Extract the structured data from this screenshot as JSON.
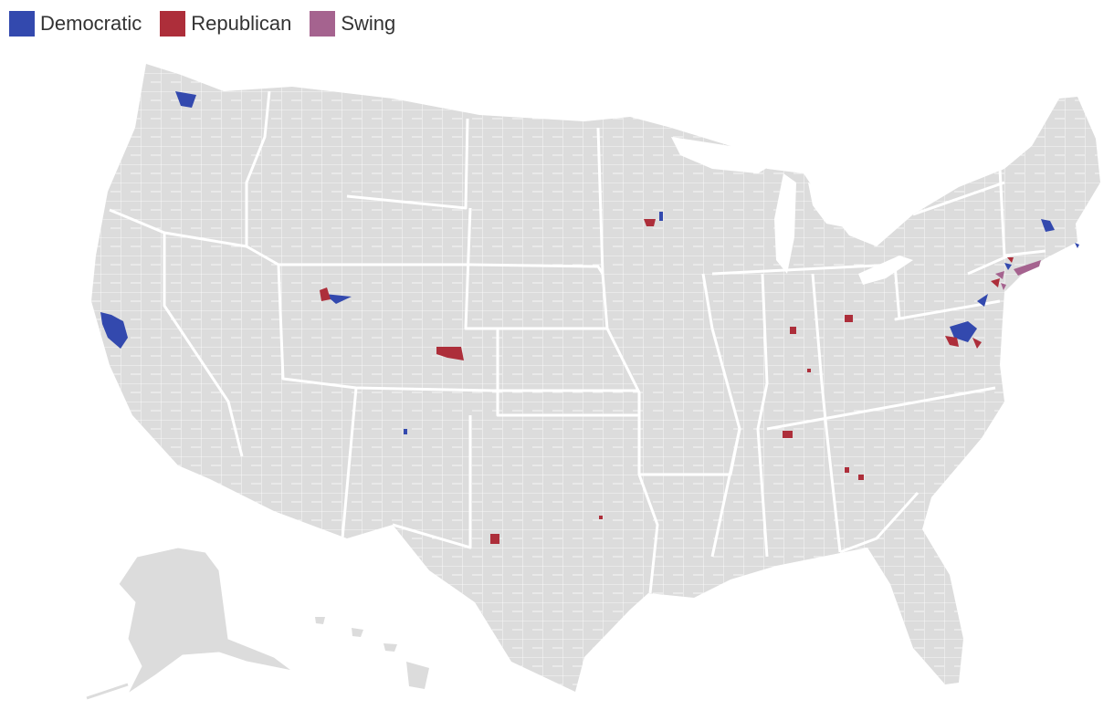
{
  "legend": {
    "items": [
      {
        "label": "Democratic",
        "color": "#3349ae"
      },
      {
        "label": "Republican",
        "color": "#ad2e3a"
      },
      {
        "label": "Swing",
        "color": "#a5638f"
      }
    ]
  },
  "map": {
    "base_fill": "#dcdcdc",
    "border_color": "#ffffff",
    "highlight_colors": {
      "democratic": "#3349ae",
      "republican": "#ad2e3a",
      "swing": "#a5638f"
    }
  }
}
